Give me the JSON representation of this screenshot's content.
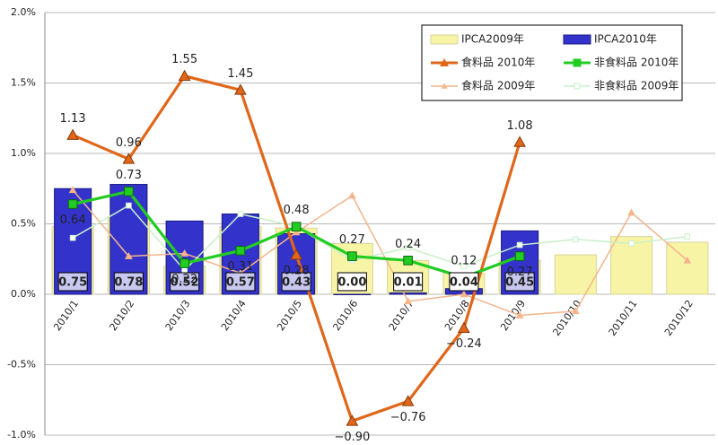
{
  "chart_data": {
    "type": "bar",
    "categories": [
      "2010/1",
      "2010/2",
      "2010/3",
      "2010/4",
      "2010/5",
      "2010/6",
      "2010/7",
      "2010/8",
      "2010/9",
      "2010/10",
      "2010/11",
      "2010/12"
    ],
    "ylim": [
      -1.0,
      2.0
    ],
    "yticks": [
      {
        "value": -1.0,
        "label": "-1.0%"
      },
      {
        "value": -0.5,
        "label": "-0.5%"
      },
      {
        "value": 0,
        "label": "0.0%"
      },
      {
        "value": 0.5,
        "label": "0.5%"
      },
      {
        "value": 1.0,
        "label": "1.0%"
      },
      {
        "value": 1.5,
        "label": "1.5%"
      },
      {
        "value": 2.0,
        "label": "2.0%"
      }
    ],
    "grid": true,
    "legend": "upper right",
    "series": [
      {
        "name": "IPCA2009年",
        "type": "bar",
        "color": "#f8f4a6",
        "values": [
          0.48,
          0.55,
          0.2,
          0.48,
          0.47,
          0.36,
          0.24,
          0.15,
          0.24,
          0.28,
          0.41,
          0.37
        ]
      },
      {
        "name": "IPCA2010年",
        "type": "bar",
        "color": "#3333cc",
        "values": [
          0.75,
          0.78,
          0.52,
          0.57,
          0.43,
          0.0,
          0.01,
          0.04,
          0.45,
          null,
          null,
          null
        ],
        "value_labels": [
          "0.75",
          "0.78",
          "0.52",
          "0.57",
          "0.43",
          "0.00",
          "0.01",
          "0.04",
          "0.45",
          null,
          null,
          null
        ]
      },
      {
        "name": "食料品 2010年",
        "type": "line",
        "color": "#e0661a",
        "marker": "triangle",
        "values": [
          1.13,
          0.96,
          1.55,
          1.45,
          0.28,
          -0.9,
          -0.76,
          -0.24,
          1.08,
          null,
          null,
          null
        ],
        "value_labels": [
          "1.13",
          "0.96",
          "1.55",
          "1.45",
          "0.28",
          "−0.90",
          "−0.76",
          "−0.24",
          "1.08",
          null,
          null,
          null
        ]
      },
      {
        "name": "非食料品 2010年",
        "type": "line",
        "color": "#22cc22",
        "marker": "square",
        "values": [
          0.64,
          0.73,
          0.22,
          0.31,
          0.48,
          0.27,
          0.24,
          0.12,
          0.27,
          null,
          null,
          null
        ],
        "value_labels": [
          "0.64",
          "0.73",
          "0.22",
          "0.31",
          "0.48",
          "0.27",
          "0.24",
          "0.12",
          "0.27",
          null,
          null,
          null
        ]
      },
      {
        "name": "食料品 2009年",
        "type": "line",
        "color": "#f5b48a",
        "marker": "triangle",
        "values": [
          0.74,
          0.27,
          0.29,
          0.15,
          0.44,
          0.7,
          -0.05,
          0.0,
          -0.15,
          -0.12,
          0.58,
          0.24
        ]
      },
      {
        "name": "非食料品 2009年",
        "type": "line",
        "color": "#c8f0c8",
        "marker": "square",
        "values": [
          0.4,
          0.63,
          0.17,
          0.57,
          0.48,
          0.24,
          0.33,
          0.2,
          0.35,
          0.39,
          0.36,
          0.41
        ]
      }
    ]
  }
}
